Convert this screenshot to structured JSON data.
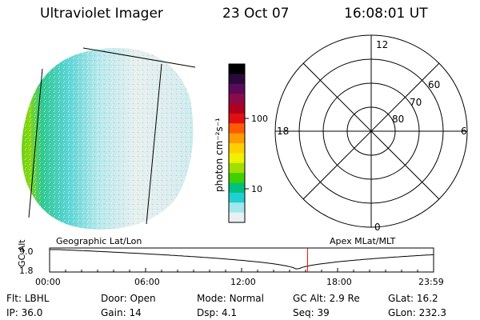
{
  "header": {
    "instrument": "Ultraviolet Imager",
    "date": "23 Oct 07",
    "time": "16:08:01 UT"
  },
  "colorbar": {
    "unit_label": "photon cm⁻²s⁻¹",
    "tick_100": "100",
    "tick_10": "10",
    "colors": [
      "#000000",
      "#2a0a3a",
      "#5a0a5a",
      "#8a0a4a",
      "#b00020",
      "#e01010",
      "#ff5a00",
      "#ff9a00",
      "#ffd000",
      "#f0f000",
      "#a0e000",
      "#40d000",
      "#00c080",
      "#20d0d0",
      "#a0e8ec",
      "#e8f0f2"
    ]
  },
  "polar": {
    "label_top": "12",
    "label_bottom": "0",
    "label_left": "18",
    "label_right": "6",
    "ring_60": "60",
    "ring_70": "70",
    "ring_80": "80"
  },
  "timeline": {
    "left_label": "Geographic Lat/Lon",
    "right_label": "Apex MLat/MLT",
    "axis_title": "GC Alt",
    "y_top": "9.0",
    "y_bottom": "1.8",
    "ticks": [
      "00:00",
      "06:00",
      "12:00",
      "18:00",
      "23:59"
    ],
    "current_time_fraction": 0.6717,
    "marker_color": "#ff0000"
  },
  "info": {
    "row1": [
      {
        "label": "Flt:",
        "value": "LBHL"
      },
      {
        "label": "Door:",
        "value": "Open"
      },
      {
        "label": "Mode:",
        "value": "Normal"
      },
      {
        "label": "GC Alt:",
        "value": "2.9 Re"
      },
      {
        "label": "GLat:",
        "value": "16.2"
      }
    ],
    "row2": [
      {
        "label": "IP:",
        "value": "36.0"
      },
      {
        "label": "Gain:",
        "value": "14"
      },
      {
        "label": "Dsp:",
        "value": "4.1"
      },
      {
        "label": "Seq:",
        "value": "39"
      },
      {
        "label": "GLon:",
        "value": "232.3"
      }
    ]
  }
}
